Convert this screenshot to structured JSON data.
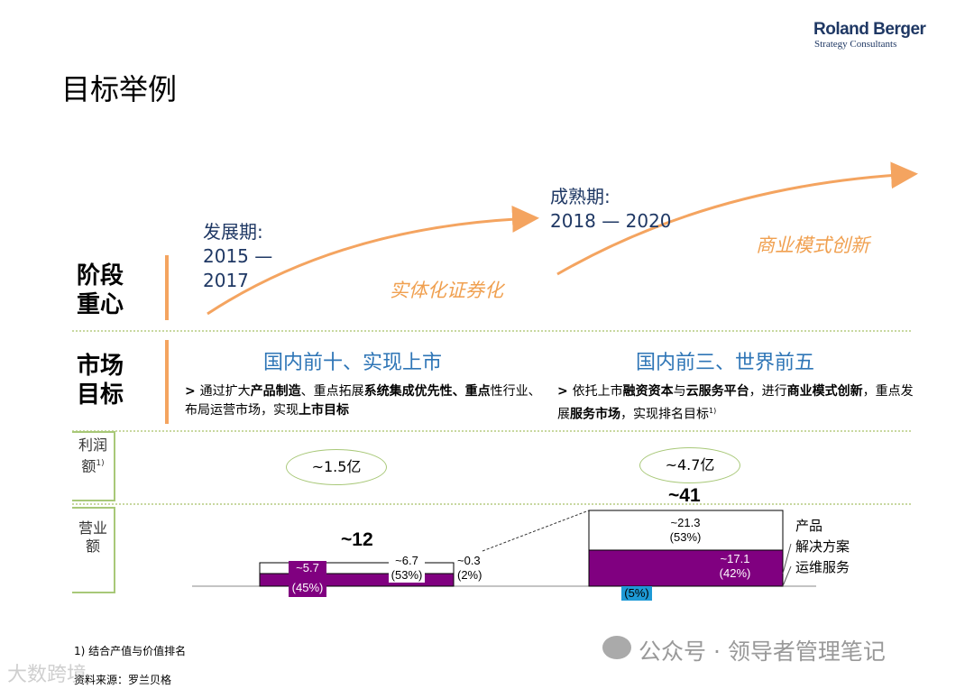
{
  "logo": {
    "name": "Roland Berger",
    "sub": "Strategy Consultants"
  },
  "title": "目标举例",
  "rows": {
    "focus": "阶段重心",
    "market": "市场目标",
    "profit": "利润额",
    "revenue": "营业额",
    "profit_note": "1)"
  },
  "phases": [
    {
      "name": "发展期:",
      "years": "2015 — 2017",
      "theme": "实体化证券化"
    },
    {
      "name": "成熟期:",
      "years": "2018 — 2020",
      "theme": "商业模式创新"
    }
  ],
  "goals": [
    {
      "title": "国内前十、实现上市",
      "desc_parts": [
        ">",
        {
          "t": "通过扩大"
        },
        {
          "b": "产品制造"
        },
        {
          "t": "、重点拓展"
        },
        {
          "b": "系统集成优先性、重点"
        },
        {
          "t": "性"
        },
        {
          "t": "行业、布局运营市场，实现"
        },
        {
          "b": "上市目标"
        }
      ]
    },
    {
      "title": "国内前三、世界前五",
      "desc_parts": [
        ">",
        {
          "t": "依托上市"
        },
        {
          "b": "融资资本"
        },
        {
          "t": "与"
        },
        {
          "b": "云服务平台"
        },
        {
          "t": "，进行"
        },
        {
          "b": "商业模式创新"
        },
        {
          "t": "，重点发展"
        },
        {
          "b": "服务市场"
        },
        {
          "t": "，实现排名目标"
        },
        {
          "sup": "1)"
        }
      ]
    }
  ],
  "profits": [
    "~1.5亿",
    "~4.7亿"
  ],
  "revenue": {
    "2017": {
      "total": "~12",
      "segments": [
        {
          "value": "~5.7",
          "pct": "(45%)"
        },
        {
          "value": "~6.7",
          "pct": "(53%)"
        },
        {
          "value": "~0.3",
          "pct": "(2%)"
        }
      ]
    },
    "2020": {
      "total": "~41",
      "segments": [
        {
          "value": "~21.3",
          "pct": "(53%)"
        },
        {
          "value": "~17.1",
          "pct": "(42%)"
        },
        {
          "value": "",
          "pct": "(5%)"
        }
      ]
    }
  },
  "legend": [
    "产品",
    "解决方案",
    "运维服务"
  ],
  "colors": {
    "purple": "#800080",
    "blue": "#1e9ad6",
    "orange": "#f4a460",
    "navy": "#1f3864"
  },
  "footnote": "1) 结合产值与价值排名",
  "source": "资料来源：罗兰贝格",
  "watermark": "公众号 · 领导者管理笔记",
  "watermark2": "大数跨境"
}
